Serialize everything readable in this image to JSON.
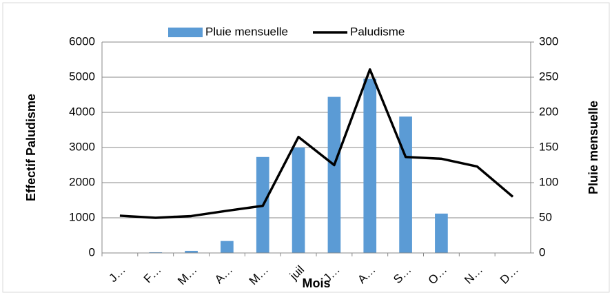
{
  "chart_data": {
    "type": "bar_line",
    "categories": [
      "J…",
      "F…",
      "M…",
      "A…",
      "M…",
      "juil",
      "J…",
      "A…",
      "S…",
      "O…",
      "N…",
      "D…"
    ],
    "series": [
      {
        "name": "Pluie mensuelle",
        "type": "bar",
        "color": "#5b9bd5",
        "axis": "y2",
        "values": [
          0,
          1,
          3,
          17,
          136.5,
          150,
          222,
          248,
          194,
          56,
          0,
          0
        ]
      },
      {
        "name": "Paludisme",
        "type": "line",
        "color": "#000000",
        "axis": "y",
        "values": [
          1060,
          1000,
          1050,
          1200,
          1340,
          3300,
          2500,
          5220,
          2730,
          2680,
          2460,
          1600
        ]
      }
    ],
    "xlabel": "Mois",
    "ylabel": "Effectif Paludisme",
    "y2label": "Pluie mensuelle",
    "ylim": [
      0,
      6000
    ],
    "yticks": [
      0,
      1000,
      2000,
      3000,
      4000,
      5000,
      6000
    ],
    "y2lim": [
      0,
      300
    ],
    "y2ticks": [
      0,
      50,
      100,
      150,
      200,
      250,
      300
    ],
    "grid": true,
    "legend": "top"
  }
}
